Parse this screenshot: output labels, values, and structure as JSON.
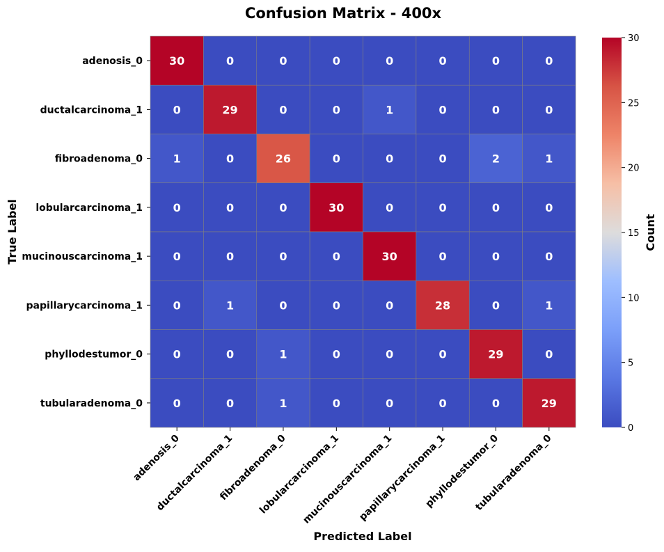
{
  "chart_data": {
    "type": "heatmap",
    "title": "Confusion Matrix - 400x",
    "xlabel": "Predicted Label",
    "ylabel": "True Label",
    "x_categories": [
      "adenosis_0",
      "ductalcarcinoma_1",
      "fibroadenoma_0",
      "lobularcarcinoma_1",
      "mucinouscarcinoma_1",
      "papillarycarcinoma_1",
      "phyllodestumor_0",
      "tubularadenoma_0"
    ],
    "y_categories": [
      "adenosis_0",
      "ductalcarcinoma_1",
      "fibroadenoma_0",
      "lobularcarcinoma_1",
      "mucinouscarcinoma_1",
      "papillarycarcinoma_1",
      "phyllodestumor_0",
      "tubularadenoma_0"
    ],
    "values": [
      [
        30,
        0,
        0,
        0,
        0,
        0,
        0,
        0
      ],
      [
        0,
        29,
        0,
        0,
        1,
        0,
        0,
        0
      ],
      [
        1,
        0,
        26,
        0,
        0,
        0,
        2,
        1
      ],
      [
        0,
        0,
        0,
        30,
        0,
        0,
        0,
        0
      ],
      [
        0,
        0,
        0,
        0,
        30,
        0,
        0,
        0
      ],
      [
        0,
        1,
        0,
        0,
        0,
        28,
        0,
        1
      ],
      [
        0,
        0,
        1,
        0,
        0,
        0,
        29,
        0
      ],
      [
        0,
        0,
        1,
        0,
        0,
        0,
        0,
        29
      ]
    ],
    "colorbar": {
      "label": "Count",
      "range": [
        0,
        30
      ],
      "ticks": [
        0,
        5,
        10,
        15,
        20,
        25,
        30
      ],
      "colormap": "coolwarm"
    },
    "grid": true,
    "legend": "colorbar-right"
  }
}
